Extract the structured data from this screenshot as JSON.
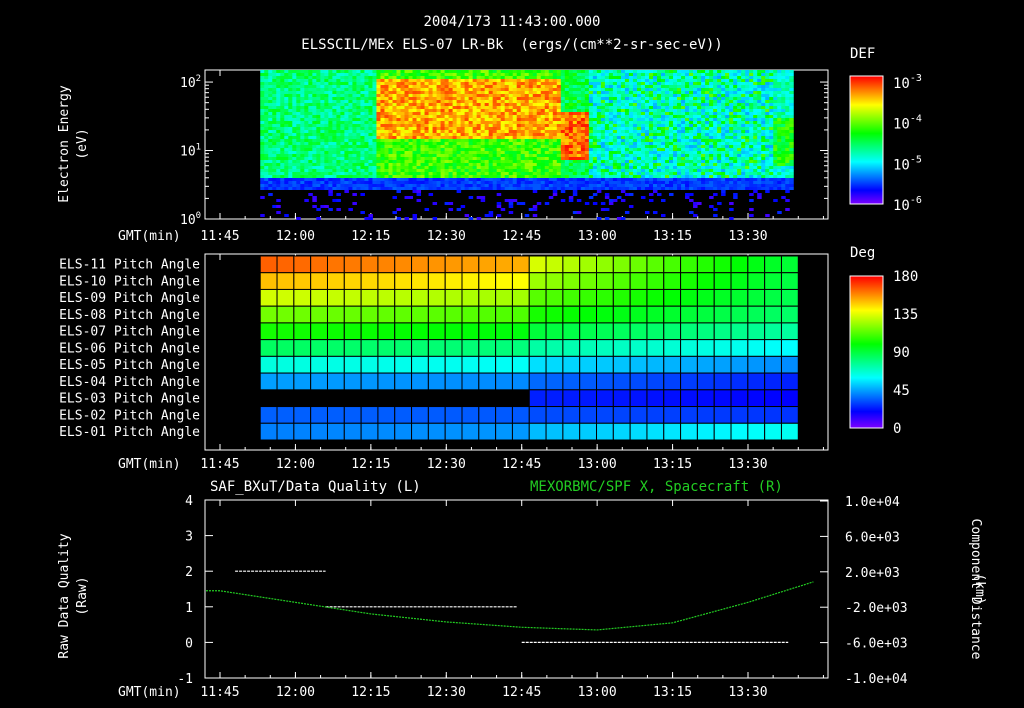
{
  "header": {
    "line1": "2004/173 11:43:00.000",
    "line2": "ELSSCIL/MEx ELS-07 LR-Bk  (ergs/(cm**2-sr-sec-eV))"
  },
  "colors": {
    "background": "#000000",
    "axis": "#ffffff",
    "green_series": "#22cc22"
  },
  "time_axis": {
    "label": "GMT(min)",
    "ticks": [
      "11:45",
      "12:00",
      "12:15",
      "12:30",
      "12:45",
      "13:00",
      "13:15",
      "13:30"
    ]
  },
  "chart_data": [
    {
      "type": "heatmap",
      "title": "",
      "ylabel_line1": "Electron Energy",
      "ylabel_line2": "(eV)",
      "y_scale": "log",
      "ylim": [
        1,
        150
      ],
      "y_tick_labels": [
        {
          "base": "10",
          "exp": "0"
        },
        {
          "base": "10",
          "exp": "1"
        },
        {
          "base": "10",
          "exp": "2"
        }
      ],
      "colorbar": {
        "label": "DEF",
        "scale": "log",
        "tick_labels": [
          {
            "base": "10",
            "exp": "-3"
          },
          {
            "base": "10",
            "exp": "-4"
          },
          {
            "base": "10",
            "exp": "-5"
          },
          {
            "base": "10",
            "exp": "-6"
          }
        ]
      },
      "data_start": "11:53",
      "data_end": "13:39"
    },
    {
      "type": "heatmap",
      "colorbar": {
        "label": "Deg",
        "tick_labels": [
          "180",
          "135",
          "90",
          "45",
          "0"
        ],
        "range": [
          0,
          180
        ]
      },
      "rows": [
        "ELS-11 Pitch Angle",
        "ELS-10 Pitch Angle",
        "ELS-09 Pitch Angle",
        "ELS-08 Pitch Angle",
        "ELS-07 Pitch Angle",
        "ELS-06 Pitch Angle",
        "ELS-05 Pitch Angle",
        "ELS-04 Pitch Angle",
        "ELS-03 Pitch Angle",
        "ELS-02 Pitch Angle",
        "ELS-01 Pitch Angle"
      ],
      "data_start": "11:53",
      "data_end": "13:40",
      "pitch_angle_start_deg": [
        165,
        150,
        133,
        118,
        103,
        85,
        65,
        45,
        null,
        35,
        40
      ],
      "pitch_angle_end_deg": [
        92,
        90,
        88,
        84,
        75,
        60,
        42,
        25,
        20,
        28,
        62
      ]
    },
    {
      "type": "line",
      "title_left": "SAF_BXuT/Data Quality (L)",
      "title_right": "MEXORBMC/SPF X, Spacecraft (R)",
      "ylabel_left_line1": "Raw Data Quality",
      "ylabel_left_line2": "(Raw)",
      "ylabel_right_line1": "Component Distance",
      "ylabel_right_line2": "(km)",
      "ylim_left": [
        -1,
        4
      ],
      "left_ticks": [
        "4",
        "3",
        "2",
        "1",
        "0",
        "-1"
      ],
      "ylim_right": [
        -10000,
        10000
      ],
      "right_ticks": [
        "1.0e+04",
        "6.0e+03",
        "2.0e+03",
        "-2.0e+03",
        "-6.0e+03",
        "-1.0e+04"
      ],
      "series": [
        {
          "axis": "left",
          "color": "#ffffff",
          "segments": [
            {
              "x": [
                "11:48",
                "12:06"
              ],
              "y": 2
            },
            {
              "x": [
                "12:06",
                "12:44"
              ],
              "y": 1
            },
            {
              "x": [
                "12:45",
                "13:38"
              ],
              "y": 0
            }
          ]
        },
        {
          "axis": "right",
          "color": "#22cc22",
          "x": [
            "11:45",
            "12:00",
            "12:15",
            "12:30",
            "12:45",
            "13:00",
            "13:15",
            "13:30",
            "13:43"
          ],
          "y": [
            -200,
            -1500,
            -2800,
            -3700,
            -4300,
            -4600,
            -3800,
            -1500,
            800
          ]
        }
      ]
    }
  ]
}
